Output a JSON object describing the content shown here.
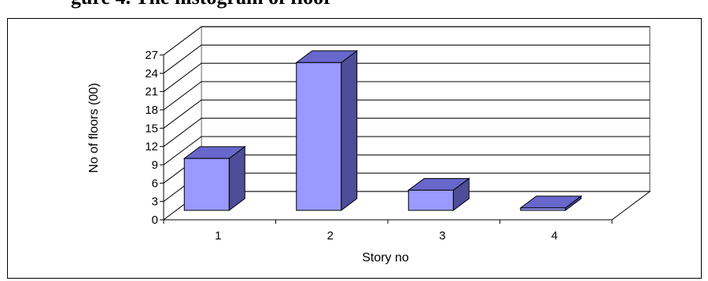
{
  "top_caption": "gure 4.  The histogram of floor",
  "chart_data": {
    "type": "bar",
    "style": "3d",
    "categories": [
      "1",
      "2",
      "3",
      "4"
    ],
    "values": [
      8.5,
      24.2,
      3.3,
      0.4
    ],
    "xlabel": "Story no",
    "ylabel": "No of floors (00)",
    "ylim": [
      0,
      27
    ],
    "yticks": [
      0,
      3,
      6,
      9,
      12,
      15,
      18,
      21,
      24,
      27
    ],
    "grid": true,
    "legend": "none",
    "colors": {
      "bar_front": "#9999ff",
      "bar_top": "#6767cc",
      "bar_side": "#4d4d99",
      "gridline": "#808080",
      "wall": "#ffffff"
    }
  }
}
